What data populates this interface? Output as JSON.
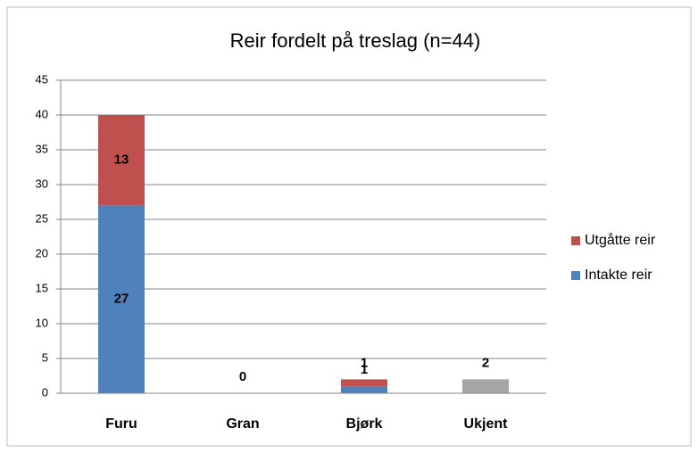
{
  "chart_data": {
    "type": "bar",
    "stacked": true,
    "title": "Reir fordelt på treslag (n=44)",
    "categories": [
      "Furu",
      "Gran",
      "Bjørk",
      "Ukjent"
    ],
    "series": [
      {
        "name": "Intakte reir",
        "color": "#4f81bd",
        "values": [
          27,
          null,
          1,
          null
        ]
      },
      {
        "name": "Utgåtte reir",
        "color": "#c0504d",
        "values": [
          13,
          null,
          1,
          null
        ]
      },
      {
        "color": "#a5a5a5",
        "values": [
          null,
          0,
          null,
          2
        ]
      }
    ],
    "ylim": [
      0,
      45
    ],
    "yticks": [
      0,
      5,
      10,
      15,
      20,
      25,
      30,
      35,
      40,
      45
    ],
    "grid": true,
    "legend": "right"
  }
}
